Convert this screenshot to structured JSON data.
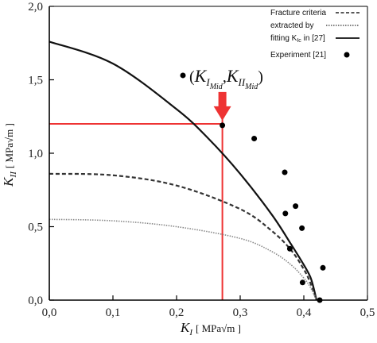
{
  "chart_data": {
    "type": "line",
    "title": "",
    "xlabel": {
      "symbol": "K",
      "sub": "I",
      "unit": "[ MPa√m ]"
    },
    "ylabel": {
      "symbol": "K",
      "sub": "II",
      "unit": "[ MPa√m ]"
    },
    "xlim": [
      0.0,
      0.5
    ],
    "ylim": [
      0.0,
      2.0
    ],
    "x_ticks": [
      "0,0",
      "0,1",
      "0,2",
      "0,3",
      "0,4",
      "0,5"
    ],
    "y_ticks": [
      "0,0",
      "0,5",
      "1,0",
      "1,5",
      "2,0"
    ],
    "grid": false,
    "legend": {
      "placement": "top-right",
      "entries": [
        {
          "label": "Fracture criteria",
          "style": "dashed"
        },
        {
          "label": "extracted by",
          "style": "dotted"
        },
        {
          "label": "fitting K",
          "sub": "Ic",
          "suffix": " in [27]",
          "style": "solid"
        },
        {
          "label": "Experiment [21]",
          "style": "marker"
        }
      ]
    },
    "series": [
      {
        "style": "solid",
        "color": "#111111",
        "x": [
          0.0,
          0.1,
          0.2,
          0.25,
          0.3,
          0.35,
          0.38,
          0.4,
          0.41,
          0.415,
          0.42
        ],
        "y": [
          1.76,
          1.61,
          1.3,
          1.1,
          0.86,
          0.58,
          0.38,
          0.24,
          0.16,
          0.09,
          0.0
        ]
      },
      {
        "style": "dashed",
        "color": "#333333",
        "x": [
          0.0,
          0.1,
          0.2,
          0.3,
          0.35,
          0.38,
          0.4,
          0.41,
          0.42
        ],
        "y": [
          0.86,
          0.85,
          0.78,
          0.62,
          0.47,
          0.34,
          0.21,
          0.12,
          0.0
        ]
      },
      {
        "style": "dotted",
        "color": "#888888",
        "x": [
          0.0,
          0.1,
          0.2,
          0.3,
          0.35,
          0.38,
          0.4,
          0.41,
          0.42
        ],
        "y": [
          0.55,
          0.54,
          0.5,
          0.42,
          0.33,
          0.24,
          0.15,
          0.09,
          0.0
        ]
      },
      {
        "style": "marker",
        "color": "#000000",
        "points": [
          {
            "x": 0.272,
            "y": 1.19
          },
          {
            "x": 0.322,
            "y": 1.1
          },
          {
            "x": 0.37,
            "y": 0.87
          },
          {
            "x": 0.387,
            "y": 0.64
          },
          {
            "x": 0.371,
            "y": 0.59
          },
          {
            "x": 0.397,
            "y": 0.49
          },
          {
            "x": 0.378,
            "y": 0.35
          },
          {
            "x": 0.43,
            "y": 0.22
          },
          {
            "x": 0.398,
            "y": 0.12
          },
          {
            "x": 0.425,
            "y": 0.0
          }
        ]
      }
    ],
    "annotation": {
      "text_K": "K",
      "sub_I": "I",
      "sub_II": "II",
      "sub_mid": "Mid",
      "open_paren": "(",
      "comma": ",",
      "close_paren": ")",
      "bullet_point": {
        "x": 0.21,
        "y": 1.53
      },
      "arrow_target": {
        "x": 0.272,
        "y": 1.19
      },
      "guide_x": 0.272,
      "guide_y": 1.2,
      "color": "#ee3333"
    }
  }
}
